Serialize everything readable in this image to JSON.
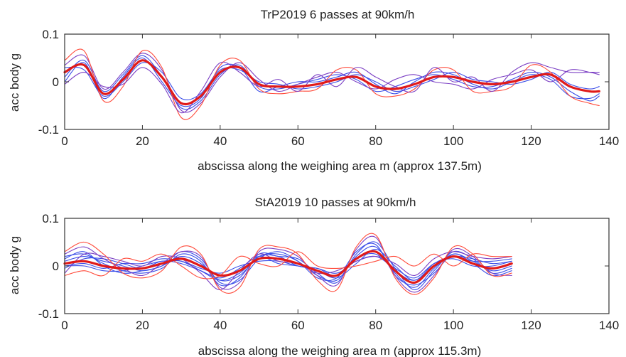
{
  "chart_data": [
    {
      "type": "line",
      "title": "TrP2019 6 passes at 90km/h",
      "xlabel": "abscissa along the weighing area m (approx 137.5m)",
      "ylabel": "acc body g",
      "xlim": [
        0,
        140
      ],
      "ylim": [
        -0.1,
        0.1
      ],
      "xticks": [
        "0",
        "20",
        "40",
        "60",
        "80",
        "100",
        "120",
        "140"
      ],
      "yticks": [
        "-0.1",
        "0",
        "0.1"
      ],
      "grid": false,
      "x": [
        0,
        5,
        10,
        15,
        20,
        25,
        30,
        35,
        40,
        45,
        50,
        55,
        60,
        65,
        70,
        75,
        80,
        85,
        90,
        95,
        100,
        105,
        110,
        115,
        120,
        125,
        130,
        135,
        137.5
      ],
      "series": [
        {
          "color": "#e01a1a",
          "width": 3.2,
          "values": [
            0.02,
            0.035,
            -0.025,
            0.005,
            0.045,
            0.01,
            -0.045,
            -0.03,
            0.02,
            0.03,
            -0.005,
            -0.01,
            -0.01,
            -0.005,
            0.005,
            0.01,
            -0.01,
            -0.015,
            -0.005,
            0.01,
            0.01,
            0.0,
            -0.005,
            0.0,
            0.01,
            0.015,
            -0.01,
            -0.02,
            -0.02
          ]
        },
        {
          "color": "#3b4ee8",
          "width": 1.1,
          "values": [
            0.01,
            0.045,
            -0.02,
            0.015,
            0.055,
            0.01,
            -0.055,
            -0.04,
            0.015,
            0.035,
            -0.01,
            -0.015,
            -0.005,
            0.005,
            0.015,
            0.005,
            -0.02,
            -0.01,
            0.005,
            0.015,
            0.005,
            -0.01,
            -0.01,
            0.005,
            0.02,
            0.01,
            -0.02,
            -0.04,
            -0.03
          ]
        },
        {
          "color": "#3b4ee8",
          "width": 1.1,
          "values": [
            0.03,
            0.025,
            -0.03,
            0.0,
            0.04,
            0.02,
            -0.035,
            -0.025,
            0.025,
            0.025,
            0.0,
            -0.005,
            -0.015,
            -0.01,
            0.0,
            0.015,
            0.0,
            -0.02,
            -0.01,
            0.005,
            0.02,
            0.005,
            0.0,
            -0.005,
            0.005,
            0.02,
            -0.005,
            -0.015,
            -0.01
          ]
        },
        {
          "color": "#3b4ee8",
          "width": 1.1,
          "values": [
            0.0,
            0.04,
            -0.035,
            0.01,
            0.05,
            0.0,
            -0.05,
            -0.035,
            0.03,
            0.03,
            -0.02,
            -0.01,
            0.0,
            0.0,
            0.01,
            0.02,
            -0.005,
            -0.025,
            0.0,
            0.02,
            0.015,
            -0.005,
            -0.015,
            0.0,
            0.015,
            0.005,
            -0.03,
            -0.035,
            -0.025
          ]
        },
        {
          "color": "#7b3fc4",
          "width": 1.1,
          "values": [
            0.035,
            0.055,
            -0.015,
            0.02,
            0.06,
            0.025,
            -0.06,
            -0.045,
            0.01,
            0.04,
            0.005,
            -0.02,
            -0.005,
            0.01,
            0.02,
            0.0,
            -0.015,
            0.005,
            0.015,
            0.0,
            -0.005,
            -0.015,
            0.005,
            0.015,
            0.025,
            0.0,
            0.025,
            0.02,
            0.015
          ]
        },
        {
          "color": "#ff4a3a",
          "width": 1.1,
          "values": [
            0.045,
            0.065,
            -0.04,
            -0.01,
            0.065,
            0.03,
            -0.075,
            -0.05,
            0.035,
            0.045,
            -0.015,
            -0.025,
            -0.02,
            -0.015,
            0.025,
            0.025,
            -0.025,
            -0.03,
            -0.015,
            0.025,
            0.025,
            -0.02,
            -0.02,
            -0.01,
            0.035,
            0.02,
            -0.03,
            -0.045,
            -0.05
          ]
        },
        {
          "color": "#7b3fc4",
          "width": 1.1,
          "values": [
            -0.005,
            0.02,
            -0.01,
            -0.005,
            0.03,
            -0.005,
            -0.065,
            -0.02,
            0.04,
            0.02,
            -0.01,
            0.005,
            -0.02,
            0.015,
            -0.01,
            0.03,
            0.01,
            -0.01,
            -0.02,
            0.03,
            0.0,
            0.01,
            -0.02,
            0.02,
            0.04,
            0.03,
            0.02,
            0.02,
            0.02
          ]
        }
      ]
    },
    {
      "type": "line",
      "title": "StA2019 10 passes at 90km/h",
      "xlabel": "abscissa along the weighing area m (approx 115.3m)",
      "ylabel": "acc body g",
      "xlim": [
        0,
        140
      ],
      "ylim": [
        -0.1,
        0.1
      ],
      "xticks": [
        "0",
        "20",
        "40",
        "60",
        "80",
        "100",
        "120",
        "140"
      ],
      "yticks": [
        "-0.1",
        "0",
        "0.1"
      ],
      "grid": false,
      "x": [
        0,
        5,
        10,
        15,
        20,
        25,
        30,
        35,
        40,
        45,
        50,
        55,
        60,
        65,
        70,
        75,
        80,
        85,
        90,
        95,
        100,
        105,
        110,
        115
      ],
      "series": [
        {
          "color": "#e01a1a",
          "width": 3.2,
          "values": [
            0.005,
            0.01,
            0.0,
            -0.005,
            -0.005,
            0.005,
            0.015,
            0.0,
            -0.02,
            -0.01,
            0.015,
            0.015,
            0.005,
            -0.01,
            -0.02,
            0.015,
            0.03,
            -0.01,
            -0.035,
            0.0,
            0.02,
            0.005,
            -0.005,
            0.005
          ]
        },
        {
          "color": "#3b4ee8",
          "width": 1.1,
          "values": [
            0.01,
            0.02,
            0.01,
            0.0,
            -0.01,
            0.0,
            0.02,
            0.005,
            -0.03,
            -0.02,
            0.02,
            0.025,
            0.01,
            -0.02,
            -0.03,
            0.02,
            0.04,
            -0.015,
            -0.045,
            -0.005,
            0.025,
            0.01,
            -0.01,
            0.0
          ]
        },
        {
          "color": "#3b4ee8",
          "width": 1.1,
          "values": [
            0.0,
            0.0,
            -0.01,
            -0.01,
            0.0,
            0.01,
            0.01,
            -0.005,
            -0.015,
            0.0,
            0.01,
            0.01,
            0.0,
            -0.005,
            -0.015,
            0.01,
            0.02,
            -0.005,
            -0.025,
            0.005,
            0.015,
            0.0,
            0.0,
            0.01
          ]
        },
        {
          "color": "#3b4ee8",
          "width": 1.1,
          "values": [
            0.02,
            0.025,
            0.005,
            -0.01,
            -0.015,
            -0.005,
            0.025,
            0.01,
            -0.04,
            -0.025,
            0.025,
            0.02,
            0.015,
            -0.015,
            -0.035,
            0.025,
            0.05,
            -0.005,
            -0.05,
            -0.01,
            0.03,
            0.015,
            -0.015,
            -0.005
          ]
        },
        {
          "color": "#3b4ee8",
          "width": 1.1,
          "values": [
            -0.005,
            0.015,
            0.015,
            0.005,
            -0.005,
            0.01,
            0.005,
            -0.01,
            -0.025,
            -0.005,
            0.02,
            0.005,
            0.0,
            -0.01,
            -0.025,
            0.005,
            0.035,
            0.0,
            -0.03,
            0.005,
            0.02,
            0.015,
            0.005,
            0.01
          ]
        },
        {
          "color": "#3b4ee8",
          "width": 1.1,
          "values": [
            0.015,
            0.03,
            0.0,
            -0.015,
            -0.01,
            0.0,
            0.03,
            0.015,
            -0.035,
            -0.03,
            0.015,
            0.03,
            0.01,
            -0.025,
            -0.025,
            0.03,
            0.045,
            -0.02,
            -0.04,
            -0.015,
            0.025,
            0.005,
            -0.02,
            -0.01
          ]
        },
        {
          "color": "#3b4ee8",
          "width": 1.1,
          "values": [
            0.0,
            0.005,
            -0.005,
            0.005,
            0.005,
            0.015,
            0.01,
            -0.01,
            -0.03,
            -0.015,
            0.02,
            0.02,
            0.0,
            -0.005,
            -0.02,
            0.015,
            0.025,
            -0.01,
            -0.03,
            0.0,
            0.02,
            0.01,
            0.01,
            0.015
          ]
        },
        {
          "color": "#7b3fc4",
          "width": 1.1,
          "values": [
            0.025,
            0.04,
            0.015,
            -0.005,
            -0.02,
            0.005,
            0.03,
            0.02,
            -0.045,
            -0.035,
            0.03,
            0.035,
            0.02,
            -0.02,
            -0.04,
            0.035,
            0.06,
            -0.02,
            -0.055,
            -0.02,
            0.035,
            0.02,
            -0.015,
            -0.02
          ]
        },
        {
          "color": "#7b3fc4",
          "width": 1.1,
          "values": [
            -0.015,
            0.025,
            0.02,
            0.01,
            0.0,
            0.02,
            0.015,
            -0.015,
            -0.05,
            -0.01,
            0.025,
            0.01,
            0.005,
            -0.015,
            -0.01,
            0.01,
            0.02,
            0.005,
            -0.02,
            0.015,
            0.03,
            0.02,
            0.015,
            0.02
          ]
        },
        {
          "color": "#ff4a3a",
          "width": 1.1,
          "values": [
            0.03,
            0.05,
            0.025,
            -0.015,
            -0.025,
            -0.01,
            0.04,
            0.025,
            -0.05,
            -0.045,
            0.035,
            0.04,
            0.025,
            -0.03,
            -0.05,
            0.04,
            0.065,
            -0.025,
            -0.06,
            -0.025,
            0.04,
            0.025,
            -0.02,
            -0.015
          ]
        },
        {
          "color": "#ff4a3a",
          "width": 1.1,
          "values": [
            -0.02,
            -0.01,
            -0.02,
            0.015,
            0.01,
            0.025,
            0.0,
            -0.025,
            -0.02,
            0.02,
            0.005,
            0.0,
            0.03,
            0.0,
            -0.005,
            0.0,
            0.01,
            0.02,
            0.0,
            0.025,
            0.0,
            0.025,
            0.02,
            0.02
          ]
        }
      ]
    }
  ]
}
